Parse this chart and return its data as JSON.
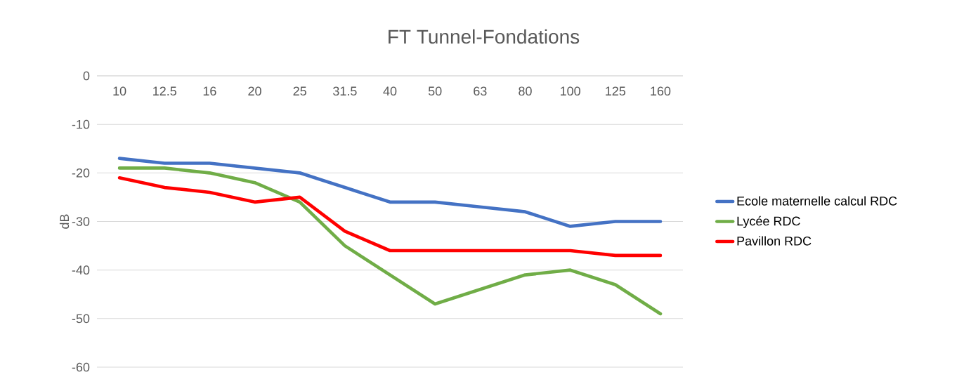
{
  "chart_data": {
    "type": "line",
    "title": "FT Tunnel-Fondations",
    "ylabel": "dB",
    "categories": [
      "10",
      "12.5",
      "16",
      "20",
      "25",
      "31.5",
      "40",
      "50",
      "63",
      "80",
      "100",
      "125",
      "160"
    ],
    "series": [
      {
        "name": "Ecole maternelle calcul RDC",
        "color": "#4472c4",
        "values": [
          -17,
          -18,
          -18,
          -19,
          -20,
          -23,
          -26,
          -26,
          -27,
          -28,
          -31,
          -30,
          -30
        ]
      },
      {
        "name": "Lycée RDC",
        "color": "#70ad47",
        "values": [
          -19,
          -19,
          -20,
          -22,
          -26,
          -35,
          -41,
          -47,
          -44,
          -41,
          -40,
          -43,
          -49
        ]
      },
      {
        "name": "Pavillon RDC",
        "color": "#ff0000",
        "values": [
          -21,
          -23,
          -24,
          -26,
          -25,
          -32,
          -36,
          -36,
          -36,
          -36,
          -36,
          -37,
          -37
        ]
      }
    ],
    "ylim": [
      -60,
      0
    ],
    "yticks": [
      0,
      -10,
      -20,
      -30,
      -40,
      -50,
      -60
    ],
    "grid": "y",
    "legend": "right",
    "marker": "none",
    "line_style": "solid"
  }
}
